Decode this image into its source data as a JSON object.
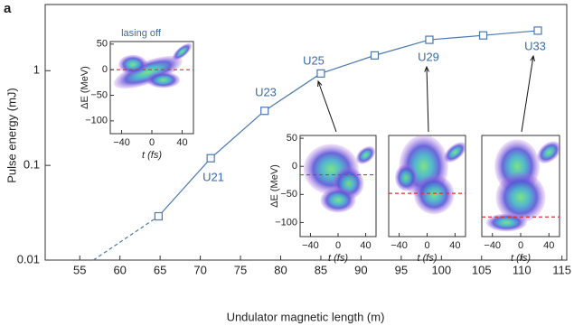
{
  "chart_data": {
    "type": "line",
    "panel_label": "a",
    "xlabel": "Undulator magnetic length (m)",
    "ylabel": "Pulse energy (mJ)",
    "log_y": true,
    "color": "#4a78b0",
    "xlim": [
      50.7,
      115.6
    ],
    "ylim": [
      0.01,
      5
    ],
    "xticks": [
      55,
      60,
      65,
      70,
      75,
      80,
      85,
      90,
      95,
      100,
      105,
      110,
      115
    ],
    "yticks": [
      0.01,
      0.1,
      1
    ],
    "x": [
      64.8,
      71.3,
      78.0,
      85.0,
      91.7,
      98.5,
      105.2,
      112.0
    ],
    "values": [
      0.029,
      0.119,
      0.377,
      0.935,
      1.45,
      2.12,
      2.36,
      2.65
    ],
    "extrapolation": {
      "x": [
        56.7,
        64.8
      ],
      "values": [
        0.01,
        0.029
      ]
    },
    "annotations": [
      "U21",
      "U23",
      "U25",
      "U29",
      "U33"
    ],
    "insets": [
      {
        "title": "lasing off",
        "xlabel": "t (fs)",
        "ylabel": "ΔE (MeV)",
        "xlim": [
          -55,
          55
        ],
        "ylim": [
          -125,
          55
        ],
        "xticks": [
          {
            "value": -40,
            "label": "−40"
          },
          0,
          40
        ],
        "yticks": [
          50,
          0,
          {
            "value": -50,
            "label": "−50"
          },
          {
            "value": -100,
            "label": "−100"
          }
        ],
        "reference": 0
      },
      {
        "xlabel": "t (fs)",
        "ylabel": "ΔE (MeV)",
        "xlim": [
          -55,
          55
        ],
        "ylim": [
          -125,
          55
        ],
        "xticks": [
          {
            "value": -40,
            "label": "−40"
          },
          0,
          40
        ],
        "yticks": [
          50,
          0,
          {
            "value": -50,
            "label": "−50"
          },
          {
            "value": -100,
            "label": "−100"
          }
        ],
        "reference": -15
      },
      {
        "xlabel": "t (fs)",
        "xlim": [
          -55,
          55
        ],
        "ylim": [
          -125,
          55
        ],
        "xticks": [
          {
            "value": -40,
            "label": "−40"
          },
          0,
          40
        ],
        "reference": -48
      },
      {
        "xlabel": "t (fs)",
        "xlim": [
          -55,
          55
        ],
        "ylim": [
          -125,
          55
        ],
        "xticks": [
          {
            "value": -40,
            "label": "−40"
          },
          0,
          40
        ],
        "reference": -90
      }
    ]
  }
}
